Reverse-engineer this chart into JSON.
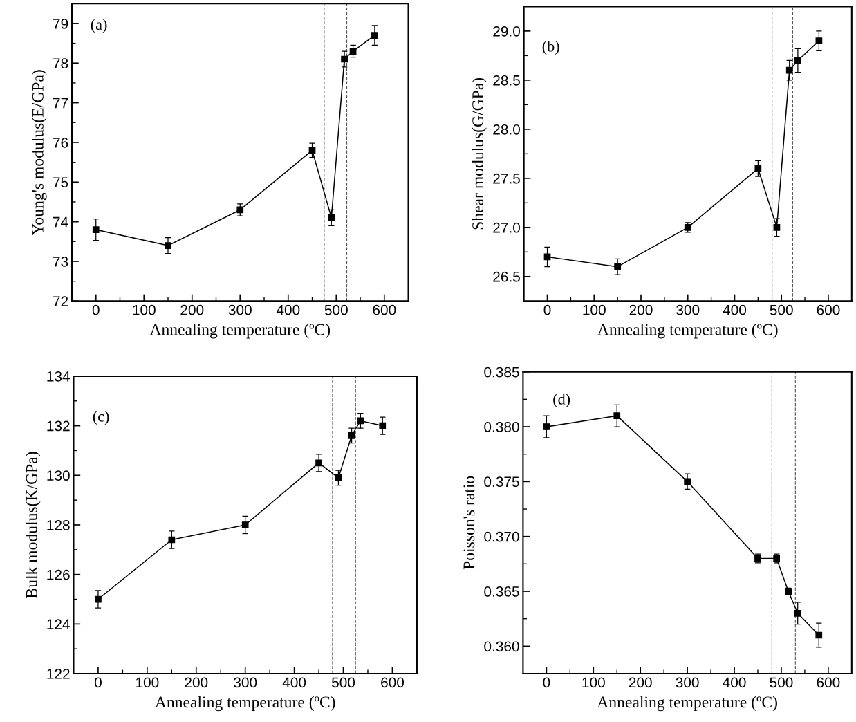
{
  "chart_data": [
    {
      "type": "line",
      "xlabel": "Annealing temperature (ºC)",
      "ylabel": "Young's modulus(E/GPa)",
      "annotations": [
        "(a)"
      ],
      "x": [
        0,
        150,
        300,
        450,
        490,
        517,
        535,
        580
      ],
      "series": [
        {
          "color": "#000000",
          "values": [
            73.8,
            73.4,
            74.3,
            75.8,
            74.1,
            78.1,
            78.3,
            78.7
          ],
          "errors": [
            0.27,
            0.2,
            0.15,
            0.18,
            0.2,
            0.2,
            0.15,
            0.25
          ]
        }
      ],
      "marker": "square",
      "line_style": "solid",
      "grid": false,
      "xlim": [
        -50,
        650
      ],
      "ylim": [
        72,
        79.5
      ],
      "xticks": [
        0,
        {
          "value": 50,
          "label": null
        },
        100,
        {
          "value": 150,
          "label": null
        },
        200,
        {
          "value": 250,
          "label": null
        },
        300,
        {
          "value": 350,
          "label": null
        },
        400,
        {
          "value": 450,
          "label": null
        },
        500,
        {
          "value": 550,
          "label": null
        },
        600
      ],
      "yticks": [
        72,
        {
          "value": 72.5,
          "label": null
        },
        73,
        {
          "value": 73.5,
          "label": null
        },
        74,
        {
          "value": 74.5,
          "label": null
        },
        75,
        {
          "value": 75.5,
          "label": null
        },
        76,
        {
          "value": 76.5,
          "label": null
        },
        77,
        {
          "value": 77.5,
          "label": null
        },
        78,
        {
          "value": 78.5,
          "label": null
        },
        79
      ],
      "ref_lines": [
        {
          "axis": "x",
          "value": 475,
          "color": "#555555",
          "line_style": "dashed"
        },
        {
          "axis": "x",
          "value": 522,
          "color": "#555555",
          "line_style": "dashed"
        }
      ]
    },
    {
      "type": "line",
      "xlabel": "Annealing temperature (ºC)",
      "ylabel": "Shear modulus(G/GPa)",
      "annotations": [
        "(b)"
      ],
      "x": [
        0,
        150,
        300,
        450,
        490,
        517,
        535,
        580
      ],
      "series": [
        {
          "color": "#000000",
          "values": [
            26.7,
            26.6,
            27.0,
            27.6,
            27.0,
            28.6,
            28.7,
            28.9
          ],
          "errors": [
            0.1,
            0.08,
            0.05,
            0.08,
            0.09,
            0.1,
            0.12,
            0.1
          ]
        }
      ],
      "marker": "square",
      "line_style": "solid",
      "grid": false,
      "xlim": [
        -50,
        650
      ],
      "ylim": [
        26.25,
        29.25
      ],
      "xticks": [
        0,
        {
          "value": 50,
          "label": null
        },
        100,
        {
          "value": 150,
          "label": null
        },
        200,
        {
          "value": 250,
          "label": null
        },
        300,
        {
          "value": 350,
          "label": null
        },
        400,
        {
          "value": 450,
          "label": null
        },
        500,
        {
          "value": 550,
          "label": null
        },
        600
      ],
      "yticks": [
        {
          "value": 26.5,
          "label": "26.5"
        },
        {
          "value": 26.75,
          "label": null
        },
        {
          "value": 27.0,
          "label": "27.0"
        },
        {
          "value": 27.25,
          "label": null
        },
        {
          "value": 27.5,
          "label": "27.5"
        },
        {
          "value": 27.75,
          "label": null
        },
        {
          "value": 28.0,
          "label": "28.0"
        },
        {
          "value": 28.25,
          "label": null
        },
        {
          "value": 28.5,
          "label": "28.5"
        },
        {
          "value": 28.75,
          "label": null
        },
        {
          "value": 29.0,
          "label": "29.0"
        }
      ],
      "ref_lines": [
        {
          "axis": "x",
          "value": 480,
          "color": "#555555",
          "line_style": "dashed"
        },
        {
          "axis": "x",
          "value": 524,
          "color": "#555555",
          "line_style": "dashed"
        }
      ]
    },
    {
      "type": "line",
      "xlabel": "Annealing temperature (ºC)",
      "ylabel": "Bulk modulus(K/GPa)",
      "annotations": [
        "(c)"
      ],
      "x": [
        0,
        150,
        300,
        450,
        490,
        517,
        535,
        580
      ],
      "series": [
        {
          "color": "#000000",
          "values": [
            125.0,
            127.4,
            128.0,
            130.5,
            129.9,
            131.6,
            132.2,
            132.0
          ],
          "errors": [
            0.35,
            0.35,
            0.35,
            0.35,
            0.3,
            0.3,
            0.3,
            0.35
          ]
        }
      ],
      "marker": "square",
      "line_style": "solid",
      "grid": false,
      "xlim": [
        -50,
        650
      ],
      "ylim": [
        122,
        134
      ],
      "xticks": [
        0,
        {
          "value": 50,
          "label": null
        },
        100,
        {
          "value": 150,
          "label": null
        },
        200,
        {
          "value": 250,
          "label": null
        },
        300,
        {
          "value": 350,
          "label": null
        },
        400,
        {
          "value": 450,
          "label": null
        },
        500,
        {
          "value": 550,
          "label": null
        },
        600
      ],
      "yticks": [
        122,
        {
          "value": 123,
          "label": null
        },
        124,
        {
          "value": 125,
          "label": null
        },
        126,
        {
          "value": 127,
          "label": null
        },
        128,
        {
          "value": 129,
          "label": null
        },
        130,
        {
          "value": 131,
          "label": null
        },
        132,
        {
          "value": 133,
          "label": null
        },
        134
      ],
      "ref_lines": [
        {
          "axis": "x",
          "value": 478,
          "color": "#555555",
          "line_style": "dashed"
        },
        {
          "axis": "x",
          "value": 525,
          "color": "#555555",
          "line_style": "dashed"
        }
      ]
    },
    {
      "type": "line",
      "xlabel": "Annealing temperature (ºC)",
      "ylabel": "Poisson's ratio",
      "annotations": [
        "(d)"
      ],
      "x": [
        0,
        150,
        300,
        450,
        490,
        515,
        535,
        580
      ],
      "series": [
        {
          "color": "#000000",
          "values": [
            0.38,
            0.381,
            0.375,
            0.368,
            0.368,
            0.365,
            0.363,
            0.361
          ],
          "errors": [
            0.001,
            0.001,
            0.0007,
            0.0004,
            0.0004,
            0.0003,
            0.001,
            0.0011
          ]
        }
      ],
      "marker": "square",
      "line_style": "solid",
      "grid": false,
      "xlim": [
        -50,
        650
      ],
      "ylim": [
        0.3575,
        0.385
      ],
      "xticks": [
        0,
        {
          "value": 50,
          "label": null
        },
        100,
        {
          "value": 150,
          "label": null
        },
        200,
        {
          "value": 250,
          "label": null
        },
        300,
        {
          "value": 350,
          "label": null
        },
        400,
        {
          "value": 450,
          "label": null
        },
        500,
        {
          "value": 550,
          "label": null
        },
        600
      ],
      "yticks": [
        {
          "value": 0.36,
          "label": "0.360"
        },
        {
          "value": 0.3625,
          "label": null
        },
        {
          "value": 0.365,
          "label": "0.365"
        },
        {
          "value": 0.3675,
          "label": null
        },
        {
          "value": 0.37,
          "label": "0.370"
        },
        {
          "value": 0.3725,
          "label": null
        },
        {
          "value": 0.375,
          "label": "0.375"
        },
        {
          "value": 0.3775,
          "label": null
        },
        {
          "value": 0.38,
          "label": "0.380"
        },
        {
          "value": 0.3825,
          "label": null
        },
        {
          "value": 0.385,
          "label": "0.385"
        }
      ],
      "ref_lines": [
        {
          "axis": "x",
          "value": 480,
          "color": "#555555",
          "line_style": "dashed"
        },
        {
          "axis": "x",
          "value": 530,
          "color": "#555555",
          "line_style": "dashed"
        }
      ]
    }
  ]
}
